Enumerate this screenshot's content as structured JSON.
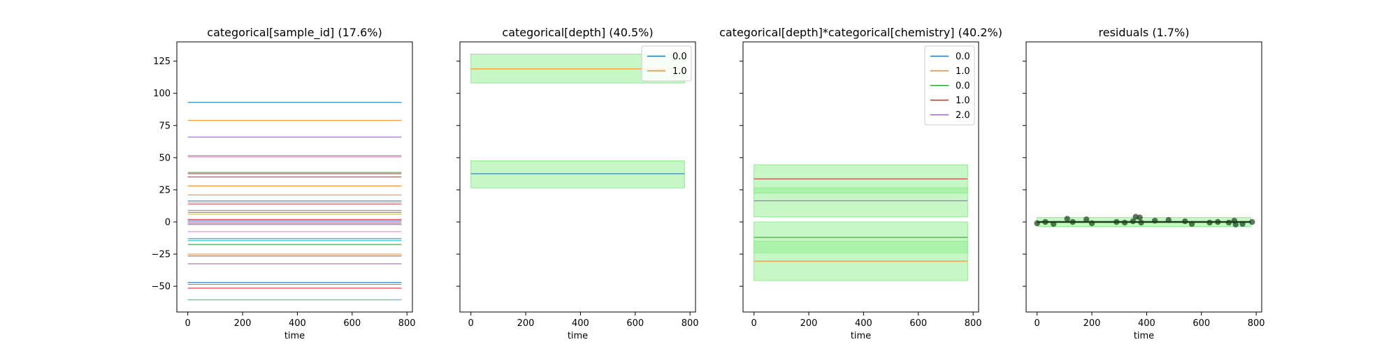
{
  "colors": {
    "c0": "#1f77b4",
    "c1": "#ff7f0e",
    "c2": "#2ca02c",
    "c3": "#d62728",
    "c4": "#9467bd",
    "c5": "#8c564b",
    "c6": "#e377c2",
    "c7": "#7f7f7f",
    "c8": "#bcbd22",
    "c9": "#17becf",
    "band": "#90ee90",
    "points": "#1a3d1a"
  },
  "chart_data": [
    {
      "type": "line",
      "title": "categorical[sample_id] (17.6%)",
      "xlabel": "time",
      "ylabel": "",
      "xlim": [
        -40,
        820
      ],
      "ylim": [
        -70,
        140
      ],
      "xticks": [
        0,
        200,
        400,
        600,
        800
      ],
      "yticks": [
        -50,
        -25,
        0,
        25,
        50,
        75,
        100,
        125
      ],
      "show_yticklabels": true,
      "legend": null,
      "bands": [],
      "points": [],
      "series": [
        {
          "y": 93,
          "color": "c0"
        },
        {
          "y": 79,
          "color": "c1"
        },
        {
          "y": 66,
          "color": "c4"
        },
        {
          "y": 51.5,
          "color": "c7"
        },
        {
          "y": 50.5,
          "color": "c6"
        },
        {
          "y": 38.5,
          "color": "c2"
        },
        {
          "y": 37.5,
          "color": "c5"
        },
        {
          "y": 35,
          "color": "c3"
        },
        {
          "y": 28,
          "color": "c1"
        },
        {
          "y": 21,
          "color": "c1"
        },
        {
          "y": 16.5,
          "color": "c9"
        },
        {
          "y": 15.5,
          "color": "c6"
        },
        {
          "y": 14,
          "color": "c3"
        },
        {
          "y": 9,
          "color": "c7"
        },
        {
          "y": 7.5,
          "color": "c5"
        },
        {
          "y": 6,
          "color": "c8"
        },
        {
          "y": 2,
          "color": "c3"
        },
        {
          "y": 1,
          "color": "c0"
        },
        {
          "y": 0,
          "color": "c6"
        },
        {
          "y": -1,
          "color": "c7"
        },
        {
          "y": -2,
          "color": "c4"
        },
        {
          "y": -7.5,
          "color": "c6"
        },
        {
          "y": -13,
          "color": "c0"
        },
        {
          "y": -14.5,
          "color": "c9"
        },
        {
          "y": -17.5,
          "color": "c2"
        },
        {
          "y": -25,
          "color": "c1"
        },
        {
          "y": -26.5,
          "color": "c5"
        },
        {
          "y": -32.5,
          "color": "c4"
        },
        {
          "y": -47,
          "color": "c0"
        },
        {
          "y": -48.5,
          "color": "c7"
        },
        {
          "y": -51.5,
          "color": "c3"
        },
        {
          "y": -60.5,
          "color": "c9"
        }
      ]
    },
    {
      "type": "line",
      "title": "categorical[depth] (40.5%)",
      "xlabel": "time",
      "ylabel": "",
      "xlim": [
        -40,
        820
      ],
      "ylim": [
        -70,
        140
      ],
      "xticks": [
        0,
        200,
        400,
        600,
        800
      ],
      "yticks": [
        -50,
        -25,
        0,
        25,
        50,
        75,
        100,
        125
      ],
      "show_yticklabels": false,
      "legend": {
        "placement": "top-right",
        "entries": [
          {
            "label": "0.0",
            "color": "c0"
          },
          {
            "label": "1.0",
            "color": "c1"
          }
        ]
      },
      "bands": [
        {
          "low": 108,
          "high": 130.5
        },
        {
          "low": 26.5,
          "high": 47.5
        }
      ],
      "points": [],
      "series": [
        {
          "name": "0.0",
          "y": 37.5,
          "color": "c0"
        },
        {
          "name": "1.0",
          "y": 119,
          "color": "c1"
        }
      ]
    },
    {
      "type": "line",
      "title": "categorical[depth]*categorical[chemistry] (40.2%)",
      "xlabel": "time",
      "ylabel": "",
      "xlim": [
        -40,
        820
      ],
      "ylim": [
        -70,
        140
      ],
      "xticks": [
        0,
        200,
        400,
        600,
        800
      ],
      "yticks": [
        -50,
        -25,
        0,
        25,
        50,
        75,
        100,
        125
      ],
      "show_yticklabels": false,
      "legend": {
        "placement": "top-right",
        "entries": [
          {
            "label": "0.0",
            "color": "c0"
          },
          {
            "label": "1.0",
            "color": "c1"
          },
          {
            "label": "0.0",
            "color": "c2"
          },
          {
            "label": "1.0",
            "color": "c3"
          },
          {
            "label": "2.0",
            "color": "c4"
          }
        ]
      },
      "bands": [
        {
          "low": 22.5,
          "high": 44.5
        },
        {
          "low": 4,
          "high": 26.5
        },
        {
          "low": -24,
          "high": 0
        },
        {
          "low": -45.5,
          "high": -15
        }
      ],
      "points": [],
      "series": [
        {
          "name": "0.0",
          "y": -12,
          "color": "c2"
        },
        {
          "name": "1.0",
          "y": -30.5,
          "color": "c1"
        },
        {
          "name": "1.0",
          "y": 33.5,
          "color": "c3"
        },
        {
          "name": "2.0",
          "y": 16.5,
          "color": "c4"
        }
      ]
    },
    {
      "type": "scatter",
      "title": "residuals (1.7%)",
      "xlabel": "time",
      "ylabel": "",
      "xlim": [
        -40,
        820
      ],
      "ylim": [
        -70,
        140
      ],
      "xticks": [
        0,
        200,
        400,
        600,
        800
      ],
      "yticks": [
        -50,
        -25,
        0,
        25,
        50,
        75,
        100,
        125
      ],
      "show_yticklabels": false,
      "legend": null,
      "bands": [
        {
          "low": -3.5,
          "high": 3.5
        }
      ],
      "series": [
        {
          "y": 0,
          "color": "points"
        }
      ],
      "points": [
        {
          "x": 0,
          "y": -1
        },
        {
          "x": 30,
          "y": 0
        },
        {
          "x": 60,
          "y": -1.5
        },
        {
          "x": 110,
          "y": 2.5
        },
        {
          "x": 130,
          "y": 0
        },
        {
          "x": 180,
          "y": 2
        },
        {
          "x": 200,
          "y": -1
        },
        {
          "x": 290,
          "y": 0
        },
        {
          "x": 320,
          "y": -0.5
        },
        {
          "x": 350,
          "y": 0.5
        },
        {
          "x": 360,
          "y": 4
        },
        {
          "x": 375,
          "y": 3.5
        },
        {
          "x": 380,
          "y": -0.5
        },
        {
          "x": 430,
          "y": 1
        },
        {
          "x": 480,
          "y": 1.5
        },
        {
          "x": 540,
          "y": 0.5
        },
        {
          "x": 565,
          "y": -1.5
        },
        {
          "x": 630,
          "y": -0.5
        },
        {
          "x": 660,
          "y": 0
        },
        {
          "x": 700,
          "y": -0.5
        },
        {
          "x": 720,
          "y": 1
        },
        {
          "x": 725,
          "y": -2
        },
        {
          "x": 750,
          "y": -1.5
        },
        {
          "x": 785,
          "y": 0
        }
      ]
    }
  ]
}
